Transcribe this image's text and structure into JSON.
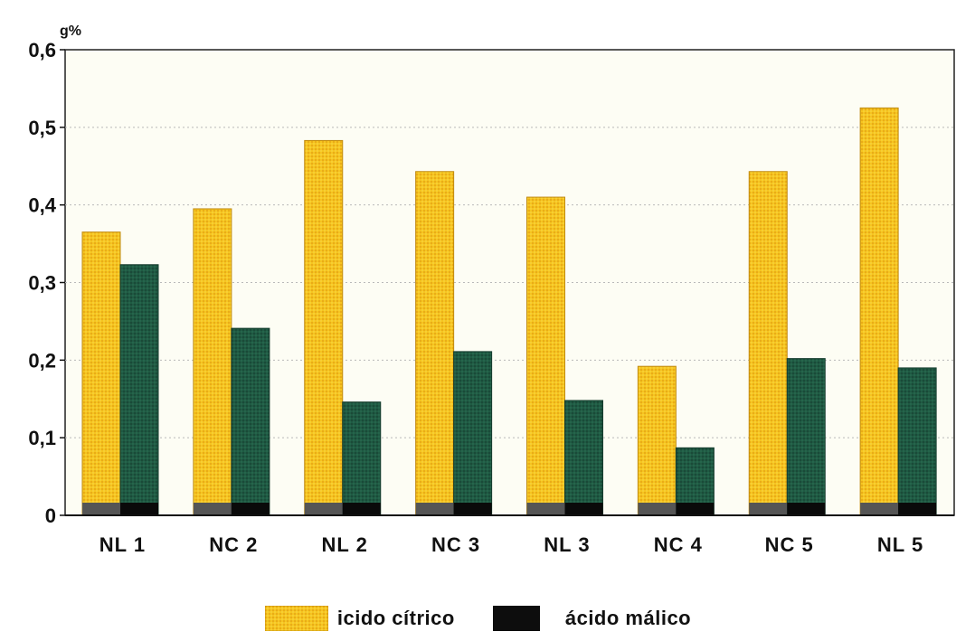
{
  "chart_data": {
    "type": "bar",
    "unit_label": "g%",
    "categories": [
      "NL 1",
      "NC 2",
      "NL 2",
      "NC 3",
      "NL 3",
      "NC 4",
      "NC 5",
      "NL 5"
    ],
    "series": [
      {
        "name": "icido cítrico",
        "color": "#f5c21b",
        "values": [
          0.365,
          0.395,
          0.483,
          0.443,
          0.41,
          0.192,
          0.443,
          0.525
        ]
      },
      {
        "name": "ácido málico",
        "color": "#1f5a43",
        "values": [
          0.323,
          0.241,
          0.146,
          0.211,
          0.148,
          0.087,
          0.202,
          0.19
        ]
      }
    ],
    "ylim": [
      0,
      0.6
    ],
    "y_ticks": [
      "0",
      "0,1",
      "0,2",
      "0,3",
      "0,4",
      "0,5",
      "0,6"
    ],
    "grid": true,
    "legend_position": "bottom"
  }
}
